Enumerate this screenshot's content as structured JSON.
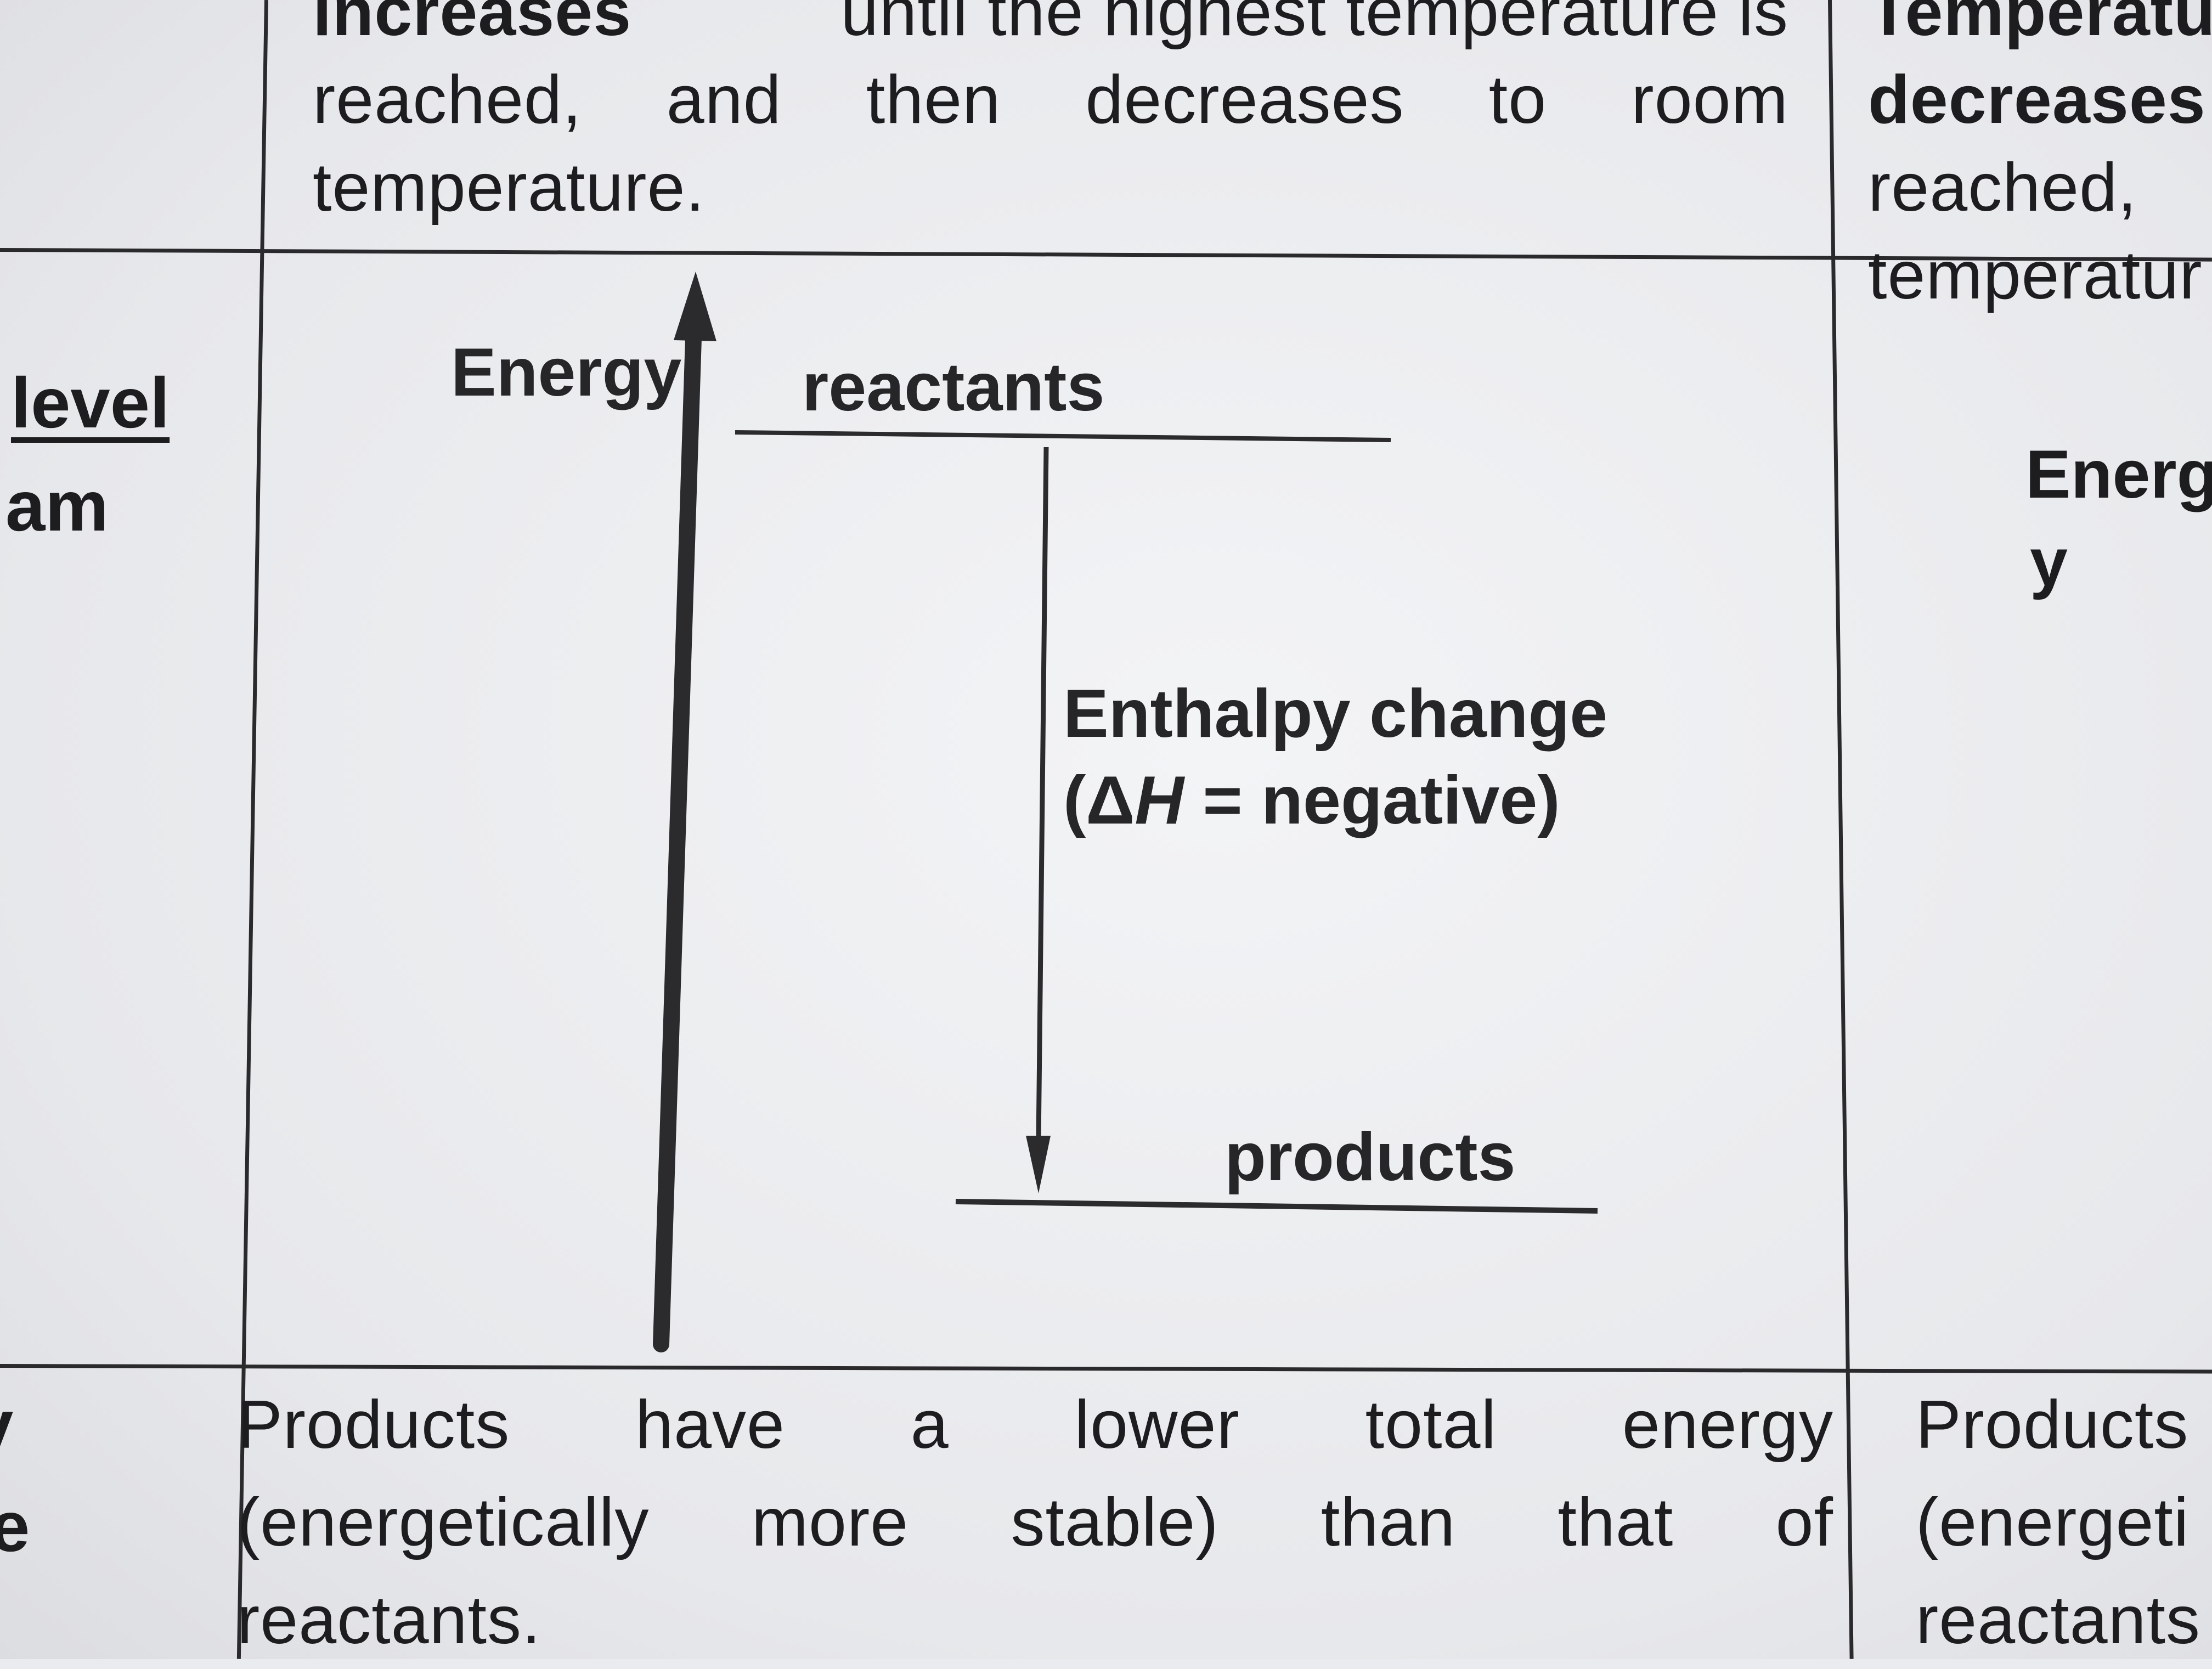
{
  "top_row": {
    "middle": {
      "line1_bold": "increases",
      "line1_rest": "until the highest temperature is",
      "line2_words": [
        "reached,",
        "and",
        "then",
        "decreases",
        "to",
        "room"
      ],
      "line3": "temperature."
    },
    "right": {
      "line1": "Temperatu",
      "line2": "decreases",
      "line3": "reached,",
      "line4": "temperatur"
    }
  },
  "left_headers": {
    "row2_line1": "level",
    "row2_line2": "am",
    "row3_line1": "y",
    "row3_line2": "e"
  },
  "diagram": {
    "axis_label": "Energy",
    "reactants_label": "reactants",
    "products_label": "products",
    "enthalpy_line1": "Enthalpy change",
    "enthalpy_line2_pre": "(Δ",
    "enthalpy_symbol": "H",
    "enthalpy_line2_post": " = negative)"
  },
  "diagram_right": {
    "axis_label_line1": "Energ",
    "axis_label_line2": "y"
  },
  "bottom_row": {
    "middle": {
      "line1_words": [
        "Products",
        "have",
        "a",
        "lower",
        "total",
        "energy"
      ],
      "line2_words": [
        "(energetically",
        "more",
        "stable)",
        "than",
        "that",
        "of"
      ],
      "line3": "reactants."
    },
    "right": {
      "line1": "Products",
      "line2": "(energeti",
      "line3": "reactants"
    }
  }
}
